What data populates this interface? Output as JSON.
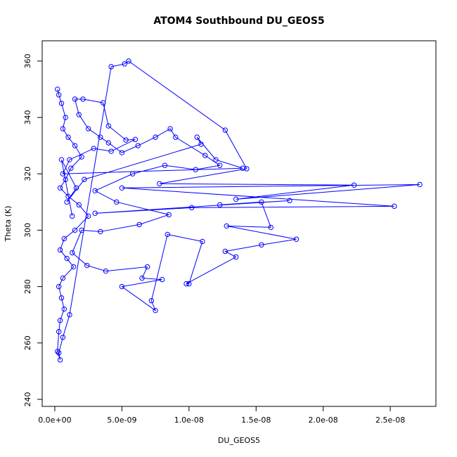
{
  "chart_data": {
    "type": "line",
    "markers": true,
    "title": "ATOM4 Southbound DU_GEOS5",
    "x_label": "DU_GEOS5",
    "y_label": "Theta (K)",
    "color": "#0000ff",
    "x": [
      2e-10,
      3e-10,
      5e-10,
      8e-10,
      6e-10,
      1e-09,
      1.5e-09,
      2e-09,
      1.2e-09,
      8e-10,
      4e-10,
      1e-09,
      1.8e-09,
      2.5e-09,
      1.5e-09,
      7e-10,
      4e-10,
      9e-10,
      1.4e-09,
      6e-10,
      3e-10,
      5e-10,
      7e-10,
      4e-10,
      3e-10,
      2e-10,
      4e-10,
      3e-10,
      6e-10,
      1.1e-09,
      4.2e-09,
      5.2e-09,
      5.5e-09,
      1.27e-08,
      1.43e-08,
      7.8e-09,
      2.23e-08,
      1.35e-08,
      2.72e-08,
      5e-09,
      2.53e-08,
      1.02e-08,
      3e-09,
      1.75e-08,
      1.23e-08,
      1.54e-08,
      1.61e-08,
      1.28e-08,
      1.8e-08,
      1.54e-08,
      1.27e-08,
      1.35e-08,
      9.8e-09,
      1e-08,
      1.1e-08,
      8.4e-09,
      7.2e-09,
      7.5e-09,
      5e-09,
      8e-09,
      6.5e-09,
      6.9e-09,
      3.8e-09,
      2.4e-09,
      1.3e-09,
      2e-09,
      3.4e-09,
      6.3e-09,
      8.5e-09,
      4.6e-09,
      3e-09,
      5.8e-09,
      8.2e-09,
      1.05e-08,
      1.23e-08,
      1.12e-08,
      9e-09,
      8.6e-09,
      7.5e-09,
      6.2e-09,
      5e-09,
      4e-09,
      3.4e-09,
      2.5e-09,
      1.8e-09,
      1.5e-09,
      2.1e-09,
      3.6e-09,
      4e-09,
      5.3e-09,
      6e-09,
      4.2e-09,
      2.9e-09,
      1.1e-09,
      6e-10,
      1.4e-08,
      1.2e-08,
      1.06e-08,
      1.09e-08,
      2.2e-09,
      9e-10,
      1.6e-09,
      5e-10,
      1.3e-09
    ],
    "series": [
      {
        "name": "Theta",
        "values": [
          350,
          348,
          345,
          340,
          336,
          333,
          330,
          326,
          322,
          318,
          315,
          312,
          309,
          305,
          300,
          297,
          293,
          290,
          287,
          283,
          280,
          276,
          272,
          268,
          264,
          257,
          254,
          256.5,
          262,
          270,
          358,
          359,
          360,
          335.5,
          321.8,
          316.5,
          316,
          311,
          316.2,
          315,
          308.5,
          308,
          306,
          310.5,
          309,
          310,
          301,
          301.5,
          296.8,
          294.8,
          292.5,
          290.5,
          281,
          281,
          296,
          298.5,
          275,
          271.5,
          280,
          282.5,
          283,
          287,
          285.5,
          287.5,
          292,
          300,
          299.5,
          302,
          305.5,
          310,
          314,
          320,
          323,
          321.5,
          323,
          326.5,
          333,
          336,
          333,
          330,
          327.5,
          331,
          333,
          336,
          341,
          346.5,
          346.5,
          345.2,
          337,
          332,
          332.2,
          328,
          329,
          325,
          320,
          322,
          325,
          333,
          330.5,
          318,
          310,
          315,
          325,
          305
        ]
      }
    ],
    "xlim": [
      -9.4e-10,
      2.84e-08
    ],
    "ylim": [
      237.5,
      367.2
    ],
    "xticks": [
      {
        "value": 0,
        "label": "0.0e+00"
      },
      {
        "value": 5e-09,
        "label": "5.0e-09"
      },
      {
        "value": 1e-08,
        "label": "1.0e-08"
      },
      {
        "value": 1.5e-08,
        "label": "1.5e-08"
      },
      {
        "value": 2e-08,
        "label": "2.0e-08"
      },
      {
        "value": 2.5e-08,
        "label": "2.5e-08"
      }
    ],
    "yticks": [
      240,
      260,
      280,
      300,
      320,
      340,
      360
    ]
  }
}
